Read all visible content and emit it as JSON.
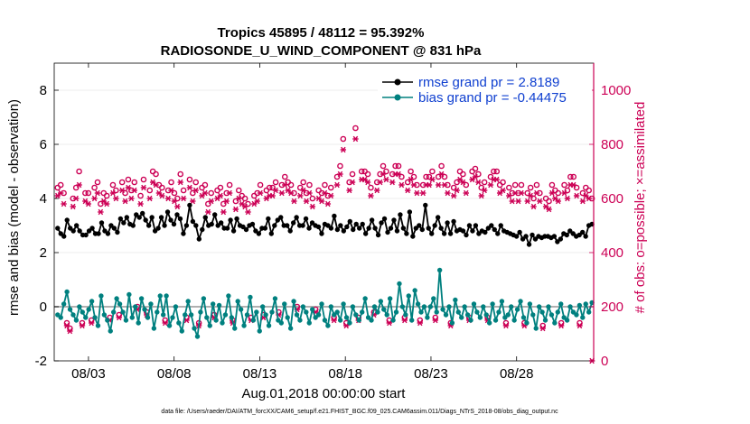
{
  "chart_data": {
    "type": "line",
    "title_line1": "Tropics 45895 / 48112 = 95.392%",
    "title_line2": "RADIOSONDE_U_WIND_COMPONENT @ 831 hPa",
    "xlabel": "Aug.01,2018 00:00:00 start",
    "ylabel_left": "rmse and bias (model - observation)",
    "ylabel_right": "# of obs: o=possible; ×=assimilated",
    "footer": "data file: /Users/raeder/DAI/ATM_forcXX/CAM6_setup/f.e21.FHIST_BGC.f09_025.CAM6assim.011/Diags_NTrS_2018-08/obs_diag_output.nc",
    "xlim": [
      1.0,
      32.5
    ],
    "ylim_left": [
      -2,
      9
    ],
    "ylim_right": [
      0,
      1100
    ],
    "x_ticks": [
      3,
      8,
      13,
      18,
      23,
      28
    ],
    "x_tick_labels": [
      "08/03",
      "08/08",
      "08/13",
      "08/18",
      "08/23",
      "08/28"
    ],
    "y_ticks_left": [
      -2,
      0,
      2,
      4,
      6,
      8
    ],
    "y_ticks_right": [
      0,
      200,
      400,
      600,
      800,
      1000
    ],
    "colors": {
      "rmse": "#000000",
      "bias": "#00807f",
      "obs": "#cc0055",
      "zero_line": "#b0b0b0",
      "legend_text": "#1040d0"
    },
    "legend": [
      {
        "label": "rmse grand pr = 2.8189",
        "series": "rmse"
      },
      {
        "label": "bias grand pr = -0.44475",
        "series": "bias"
      }
    ],
    "series": [
      {
        "name": "rmse",
        "axis": "left",
        "marker": "star",
        "values": [
          2.9,
          2.7,
          2.6,
          3.2,
          2.9,
          2.8,
          3.0,
          2.8,
          2.65,
          2.65,
          2.8,
          2.9,
          2.7,
          2.7,
          3.1,
          2.8,
          2.7,
          3.0,
          2.9,
          2.75,
          3.25,
          3.1,
          3.3,
          3.05,
          3.0,
          3.4,
          3.3,
          3.45,
          3.2,
          3.0,
          3.3,
          2.8,
          2.9,
          3.3,
          3.0,
          3.5,
          3.2,
          3.05,
          3.4,
          3.25,
          2.7,
          3.0,
          3.75,
          3.15,
          3.0,
          2.5,
          2.85,
          3.3,
          3.0,
          3.05,
          3.4,
          3.0,
          3.1,
          2.9,
          2.9,
          3.2,
          2.8,
          3.25,
          3.0,
          2.95,
          2.85,
          3.0,
          3.05,
          2.8,
          2.7,
          2.9,
          2.9,
          3.25,
          2.7,
          3.0,
          3.2,
          3.3,
          3.0,
          3.0,
          2.8,
          3.1,
          3.3,
          3.0,
          3.0,
          3.25,
          2.9,
          3.1,
          3.0,
          2.95,
          2.7,
          3.05,
          3.0,
          2.9,
          3.35,
          2.85,
          3.0,
          2.8,
          2.95,
          3.15,
          2.85,
          3.05,
          2.9,
          3.05,
          2.7,
          2.9,
          3.2,
          2.9,
          2.65,
          3.1,
          3.25,
          2.75,
          2.9,
          3.2,
          2.8,
          3.4,
          2.9,
          2.7,
          3.5,
          2.6,
          2.9,
          3.0,
          2.85,
          3.75,
          2.9,
          2.7,
          3.0,
          3.3,
          2.9,
          2.7,
          3.1,
          2.7,
          3.15,
          2.8,
          2.85,
          2.8,
          2.65,
          3.0,
          2.8,
          3.0,
          2.7,
          2.8,
          2.75,
          2.9,
          3.0,
          2.85,
          2.7,
          3.0,
          2.8,
          2.75,
          2.7,
          2.65,
          2.6,
          2.75,
          2.5,
          2.6,
          2.3,
          2.65,
          2.5,
          2.6,
          2.55,
          2.6,
          2.6,
          2.55,
          2.6,
          2.4,
          2.5,
          2.7,
          2.65,
          2.8,
          2.7,
          2.6,
          2.65,
          2.75,
          2.6,
          3.0,
          3.05
        ]
      },
      {
        "name": "bias",
        "axis": "left",
        "marker": "dot",
        "values": [
          -0.3,
          -0.4,
          0.1,
          0.55,
          -0.1,
          -0.3,
          -0.5,
          0.0,
          -0.2,
          -0.4,
          -0.1,
          0.2,
          -0.4,
          -0.7,
          0.4,
          -0.3,
          -0.5,
          -0.9,
          -0.2,
          0.3,
          0.1,
          -0.2,
          -0.5,
          0.45,
          -0.4,
          0.0,
          -0.6,
          0.3,
          -0.1,
          -0.4,
          0.1,
          -0.8,
          -0.2,
          0.4,
          -0.3,
          0.4,
          -0.7,
          -0.4,
          0.0,
          -0.6,
          -0.9,
          -0.3,
          0.2,
          -0.3,
          -0.8,
          -1.1,
          -0.2,
          0.3,
          -0.4,
          -0.7,
          0.1,
          -0.5,
          0.05,
          -0.6,
          -0.3,
          0.4,
          -0.4,
          -0.8,
          0.2,
          -0.1,
          -0.7,
          -0.3,
          0.35,
          -0.5,
          -0.2,
          -0.9,
          0.0,
          -0.3,
          -0.7,
          -0.2,
          0.3,
          -0.5,
          -0.6,
          0.1,
          -0.4,
          -0.8,
          0.2,
          -0.3,
          -0.5,
          0.0,
          -0.2,
          -0.6,
          -0.1,
          -0.4,
          -0.3,
          0.1,
          -0.5,
          -0.7,
          0.0,
          -0.3,
          -0.2,
          -0.5,
          0.1,
          -0.4,
          -0.6,
          0.0,
          -0.3,
          -0.5,
          -0.2,
          0.3,
          -0.4,
          -0.5,
          0.0,
          -0.2,
          0.2,
          -0.1,
          -0.3,
          0.3,
          -0.5,
          -0.2,
          0.85,
          0.0,
          -0.3,
          0.4,
          -0.5,
          0.6,
          0.1,
          -0.2,
          0.0,
          -0.4,
          0.0,
          0.3,
          -0.2,
          1.35,
          -0.1,
          -0.3,
          0.0,
          -0.6,
          0.25,
          -0.2,
          -0.4,
          0.0,
          -0.3,
          -0.5,
          0.1,
          -0.2,
          -0.4,
          0.0,
          -0.3,
          -0.6,
          0.1,
          -0.5,
          -0.2,
          0.2,
          -0.4,
          -0.3,
          0.0,
          -0.5,
          -0.1,
          0.2,
          -0.4,
          -0.6,
          0.1,
          -0.3,
          -0.8,
          0.0,
          -0.2,
          -0.5,
          0.0,
          -0.3,
          -0.6,
          -0.2,
          0.1,
          -0.4,
          -0.5,
          0.0,
          -0.2,
          -0.3,
          0.05,
          -0.4,
          0.1,
          -0.2,
          0.15
        ]
      },
      {
        "name": "possible",
        "axis": "right",
        "marker": "circle",
        "values": [
          640,
          650,
          620,
          140,
          120,
          600,
          640,
          700,
          140,
          620,
          620,
          150,
          640,
          660,
          580,
          620,
          610,
          160,
          650,
          630,
          170,
          660,
          620,
          670,
          630,
          660,
          200,
          610,
          670,
          180,
          630,
          700,
          690,
          650,
          640,
          150,
          630,
          660,
          620,
          600,
          690,
          630,
          160,
          670,
          620,
          660,
          140,
          640,
          650,
          580,
          620,
          170,
          630,
          640,
          580,
          620,
          650,
          150,
          590,
          630,
          610,
          600,
          580,
          160,
          610,
          620,
          650,
          170,
          630,
          640,
          640,
          660,
          180,
          650,
          680,
          660,
          650,
          620,
          200,
          640,
          660,
          620,
          650,
          600,
          190,
          630,
          620,
          650,
          610,
          640,
          160,
          680,
          720,
          820,
          140,
          660,
          690,
          860,
          160,
          700,
          700,
          690,
          640,
          180,
          660,
          690,
          720,
          700,
          150,
          690,
          720,
          720,
          680,
          160,
          660,
          700,
          680,
          650,
          150,
          650,
          680,
          680,
          700,
          160,
          680,
          720,
          680,
          650,
          140,
          640,
          660,
          700,
          690,
          650,
          160,
          700,
          710,
          690,
          640,
          660,
          160,
          680,
          700,
          700,
          650,
          660,
          140,
          640,
          620,
          650,
          620,
          650,
          140,
          620,
          640,
          600,
          650,
          620,
          130,
          600,
          590,
          650,
          630,
          620,
          140,
          650,
          630,
          680,
          680,
          640,
          140,
          620,
          640,
          630,
          600
        ]
      },
      {
        "name": "assimilated",
        "axis": "right",
        "marker": "asterisk",
        "values": [
          610,
          620,
          580,
          130,
          110,
          570,
          600,
          650,
          130,
          590,
          580,
          140,
          600,
          620,
          550,
          590,
          580,
          150,
          620,
          600,
          160,
          630,
          590,
          640,
          600,
          630,
          190,
          580,
          640,
          170,
          600,
          660,
          650,
          620,
          610,
          140,
          600,
          630,
          590,
          570,
          660,
          600,
          150,
          640,
          590,
          630,
          130,
          610,
          620,
          550,
          590,
          160,
          600,
          610,
          550,
          590,
          620,
          140,
          560,
          600,
          580,
          570,
          550,
          150,
          580,
          590,
          620,
          160,
          600,
          610,
          610,
          630,
          170,
          620,
          650,
          630,
          620,
          590,
          190,
          610,
          630,
          590,
          620,
          570,
          180,
          600,
          590,
          620,
          580,
          610,
          150,
          650,
          690,
          780,
          130,
          630,
          660,
          820,
          150,
          670,
          670,
          660,
          610,
          170,
          630,
          660,
          690,
          670,
          140,
          660,
          690,
          690,
          650,
          150,
          630,
          670,
          650,
          620,
          140,
          620,
          650,
          650,
          670,
          150,
          650,
          690,
          650,
          620,
          130,
          610,
          630,
          670,
          660,
          620,
          150,
          670,
          680,
          660,
          610,
          630,
          150,
          650,
          670,
          670,
          620,
          630,
          130,
          610,
          590,
          620,
          590,
          620,
          130,
          590,
          610,
          570,
          620,
          590,
          120,
          570,
          560,
          620,
          600,
          590,
          130,
          620,
          600,
          650,
          650,
          610,
          130,
          590,
          610,
          600,
          0
        ]
      }
    ]
  }
}
